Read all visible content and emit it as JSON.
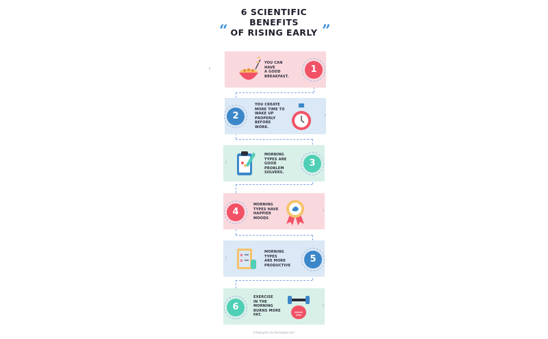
{
  "title": {
    "line1": "6 SCIENTIFIC",
    "line2": "BENEFITS",
    "line3": "OF RISING EARLY",
    "open_quote": "“",
    "close_quote": "”"
  },
  "benefits": [
    {
      "number": "1",
      "lines": [
        "YOU CAN",
        "HAVE",
        "A GOOD",
        "BREAKFAST."
      ],
      "icon": "cereal-bowl-icon"
    },
    {
      "number": "2",
      "lines": [
        "YOU CREATE",
        "MORE TIME TO",
        "WAKE UP",
        "PROPERLY",
        "BEFORE",
        "WORK."
      ],
      "icon": "alarm-clock-icon"
    },
    {
      "number": "3",
      "lines": [
        "MORNING",
        "TYPES ARE",
        "GOOD",
        "PROBLEM",
        "SOLVERS."
      ],
      "icon": "clipboard-icon"
    },
    {
      "number": "4",
      "lines": [
        "MORNING",
        "TYPES HAVE",
        "HAPPIER",
        "MOODS"
      ],
      "icon": "award-ribbon-icon"
    },
    {
      "number": "5",
      "lines": [
        "MORNING",
        "TYPES",
        "ARE MORE",
        "PRODUCTIVE"
      ],
      "icon": "notebook-icon"
    },
    {
      "number": "6",
      "lines": [
        "EXERCISE",
        "IN THE",
        "MORNING",
        "BURNS MORE",
        "FAT."
      ],
      "icon": "dumbbell-muscle-icon"
    }
  ],
  "chevron_left": "‹",
  "chevron_right": "›",
  "footer": "Infographic by Venngage.com",
  "colors": {
    "pink": "#f9d9de",
    "blue": "#dbe8f5",
    "mint": "#d8f0e8",
    "red": "#f25266",
    "navy": "#3c87c9",
    "teal": "#4fcfb5"
  }
}
